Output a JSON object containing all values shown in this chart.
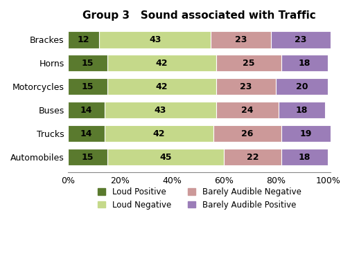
{
  "title": "Group 3   Sound associated with Traffic",
  "categories": [
    "Brackes",
    "Horns",
    "Motorcycles",
    "Buses",
    "Trucks",
    "Automobiles"
  ],
  "series": [
    {
      "label": "Loud Positive",
      "color": "#5a7a2e",
      "values": [
        12,
        15,
        15,
        14,
        14,
        15
      ]
    },
    {
      "label": "Loud Negative",
      "color": "#c5d98a",
      "values": [
        43,
        42,
        42,
        43,
        42,
        45
      ]
    },
    {
      "label": "Barely Audible Negative",
      "color": "#cc9999",
      "values": [
        23,
        25,
        23,
        24,
        26,
        22
      ]
    },
    {
      "label": "Barely Audible Positive",
      "color": "#9b7db8",
      "values": [
        23,
        18,
        20,
        18,
        19,
        18
      ]
    }
  ],
  "xlim": [
    0,
    101
  ],
  "xticks": [
    0,
    20,
    40,
    60,
    80,
    100
  ],
  "xticklabels": [
    "0%",
    "20%",
    "40%",
    "60%",
    "80%",
    "100%"
  ],
  "bar_height": 0.72,
  "title_fontsize": 11,
  "tick_fontsize": 9,
  "label_fontsize": 8.5,
  "annot_fontsize": 9,
  "figsize": [
    5.06,
    3.86
  ],
  "dpi": 100
}
